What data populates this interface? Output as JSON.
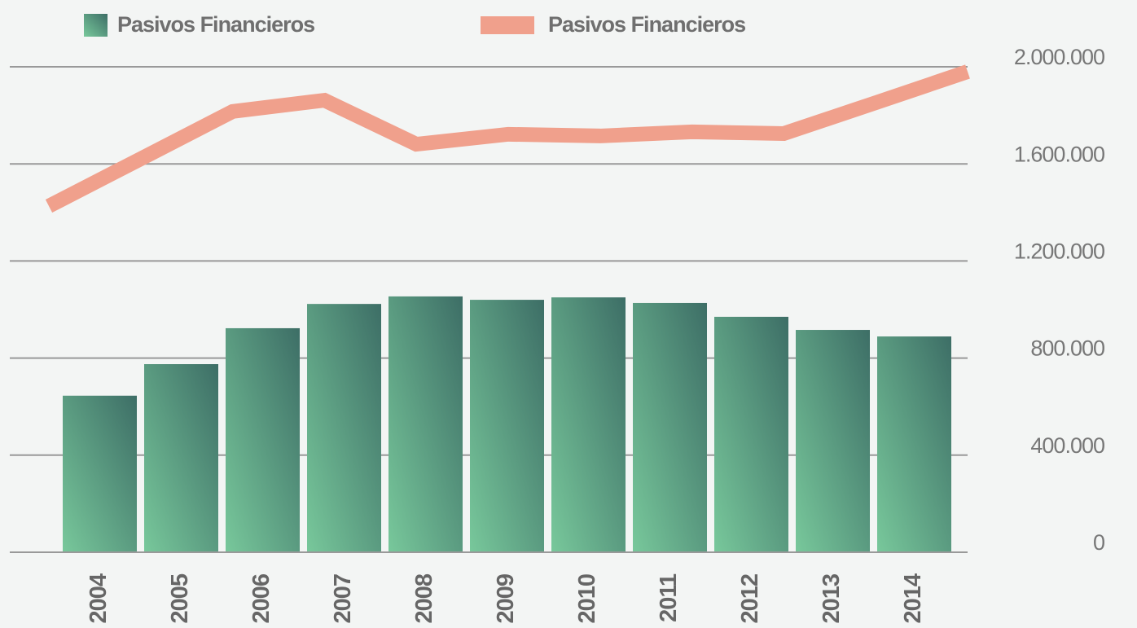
{
  "chart_data": {
    "type": "bar",
    "categories": [
      "2004",
      "2005",
      "2006",
      "2007",
      "2008",
      "2009",
      "2010",
      "2011",
      "2012",
      "2013",
      "2014"
    ],
    "series": [
      {
        "name": "Pasivos Financieros",
        "type": "bar",
        "color": "#3d6e66",
        "values": [
          645000,
          775000,
          923000,
          1023000,
          1054000,
          1040000,
          1050000,
          1027000,
          970000,
          916000,
          889000
        ]
      },
      {
        "name": "Pasivos Financieros",
        "type": "line",
        "color": "#f0a08c",
        "values": [
          1426000,
          1621000,
          1816000,
          1862000,
          1681000,
          1722000,
          1715000,
          1732000,
          1725000,
          1852000,
          1980000
        ]
      }
    ],
    "ylim": [
      0,
      2000000
    ],
    "yticks": [
      0,
      {
        "value": 400000,
        "label": "400.000"
      },
      {
        "value": 800000,
        "label": "800.000"
      },
      {
        "value": 1200000,
        "label": "1.200.000"
      },
      {
        "value": 1600000,
        "label": "1.600.000"
      },
      {
        "value": 2000000,
        "label": "2.000.000"
      }
    ],
    "grid": true
  }
}
